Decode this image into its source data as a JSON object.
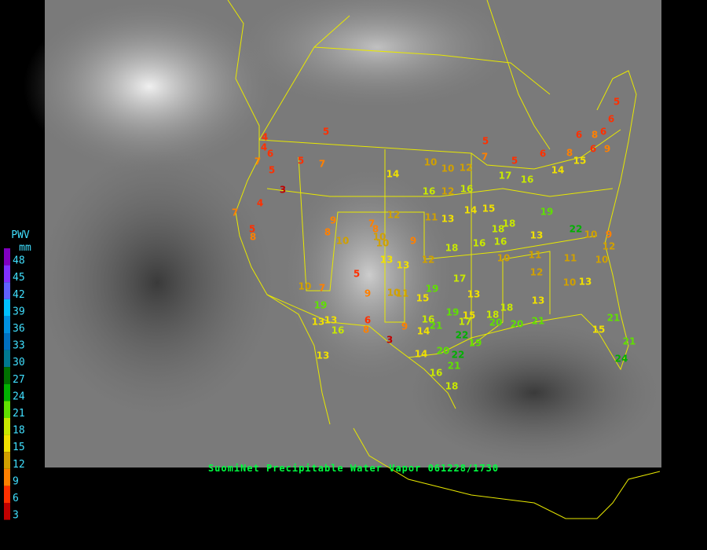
{
  "legend": {
    "title": "PWV",
    "unit": "mm",
    "levels": [
      {
        "value": 48,
        "color": "#8000c0"
      },
      {
        "value": 45,
        "color": "#8030ff"
      },
      {
        "value": 42,
        "color": "#6060ff"
      },
      {
        "value": 39,
        "color": "#00c0ff"
      },
      {
        "value": 36,
        "color": "#0090e0"
      },
      {
        "value": 33,
        "color": "#0070c0"
      },
      {
        "value": 30,
        "color": "#007890"
      },
      {
        "value": 27,
        "color": "#007000"
      },
      {
        "value": 24,
        "color": "#00b000"
      },
      {
        "value": 21,
        "color": "#60e000"
      },
      {
        "value": 18,
        "color": "#c8e800"
      },
      {
        "value": 15,
        "color": "#f0e000"
      },
      {
        "value": 12,
        "color": "#d0a000"
      },
      {
        "value": 9,
        "color": "#ff8000"
      },
      {
        "value": 6,
        "color": "#ff3000"
      },
      {
        "value": 3,
        "color": "#c00000"
      }
    ]
  },
  "caption": "SuomiNet Precipitable Water Vapor 061228/1730",
  "stations": [
    5,
    5,
    6,
    6,
    8,
    6,
    5,
    5,
    6,
    8,
    6,
    9,
    7,
    4,
    4,
    6,
    7,
    5,
    5,
    7,
    3,
    4,
    7,
    5,
    8,
    9,
    8,
    10,
    7,
    8,
    10,
    10,
    9,
    14,
    10,
    10,
    12,
    17,
    16,
    14,
    15,
    16,
    12,
    16,
    12,
    11,
    13,
    14,
    15,
    18,
    18,
    19,
    22,
    10,
    9,
    12,
    10,
    13,
    16,
    16,
    13,
    13,
    12,
    18,
    5,
    7,
    10,
    19,
    13,
    13,
    9,
    10,
    11,
    15,
    19,
    17,
    13,
    10,
    11,
    11,
    12,
    10,
    13,
    13,
    18,
    6,
    8,
    16,
    9,
    3,
    16,
    21,
    14,
    19,
    15,
    17,
    18,
    20,
    20,
    21,
    21,
    15,
    21,
    24,
    22,
    20,
    22,
    19,
    13,
    14,
    16,
    21,
    18
  ]
}
